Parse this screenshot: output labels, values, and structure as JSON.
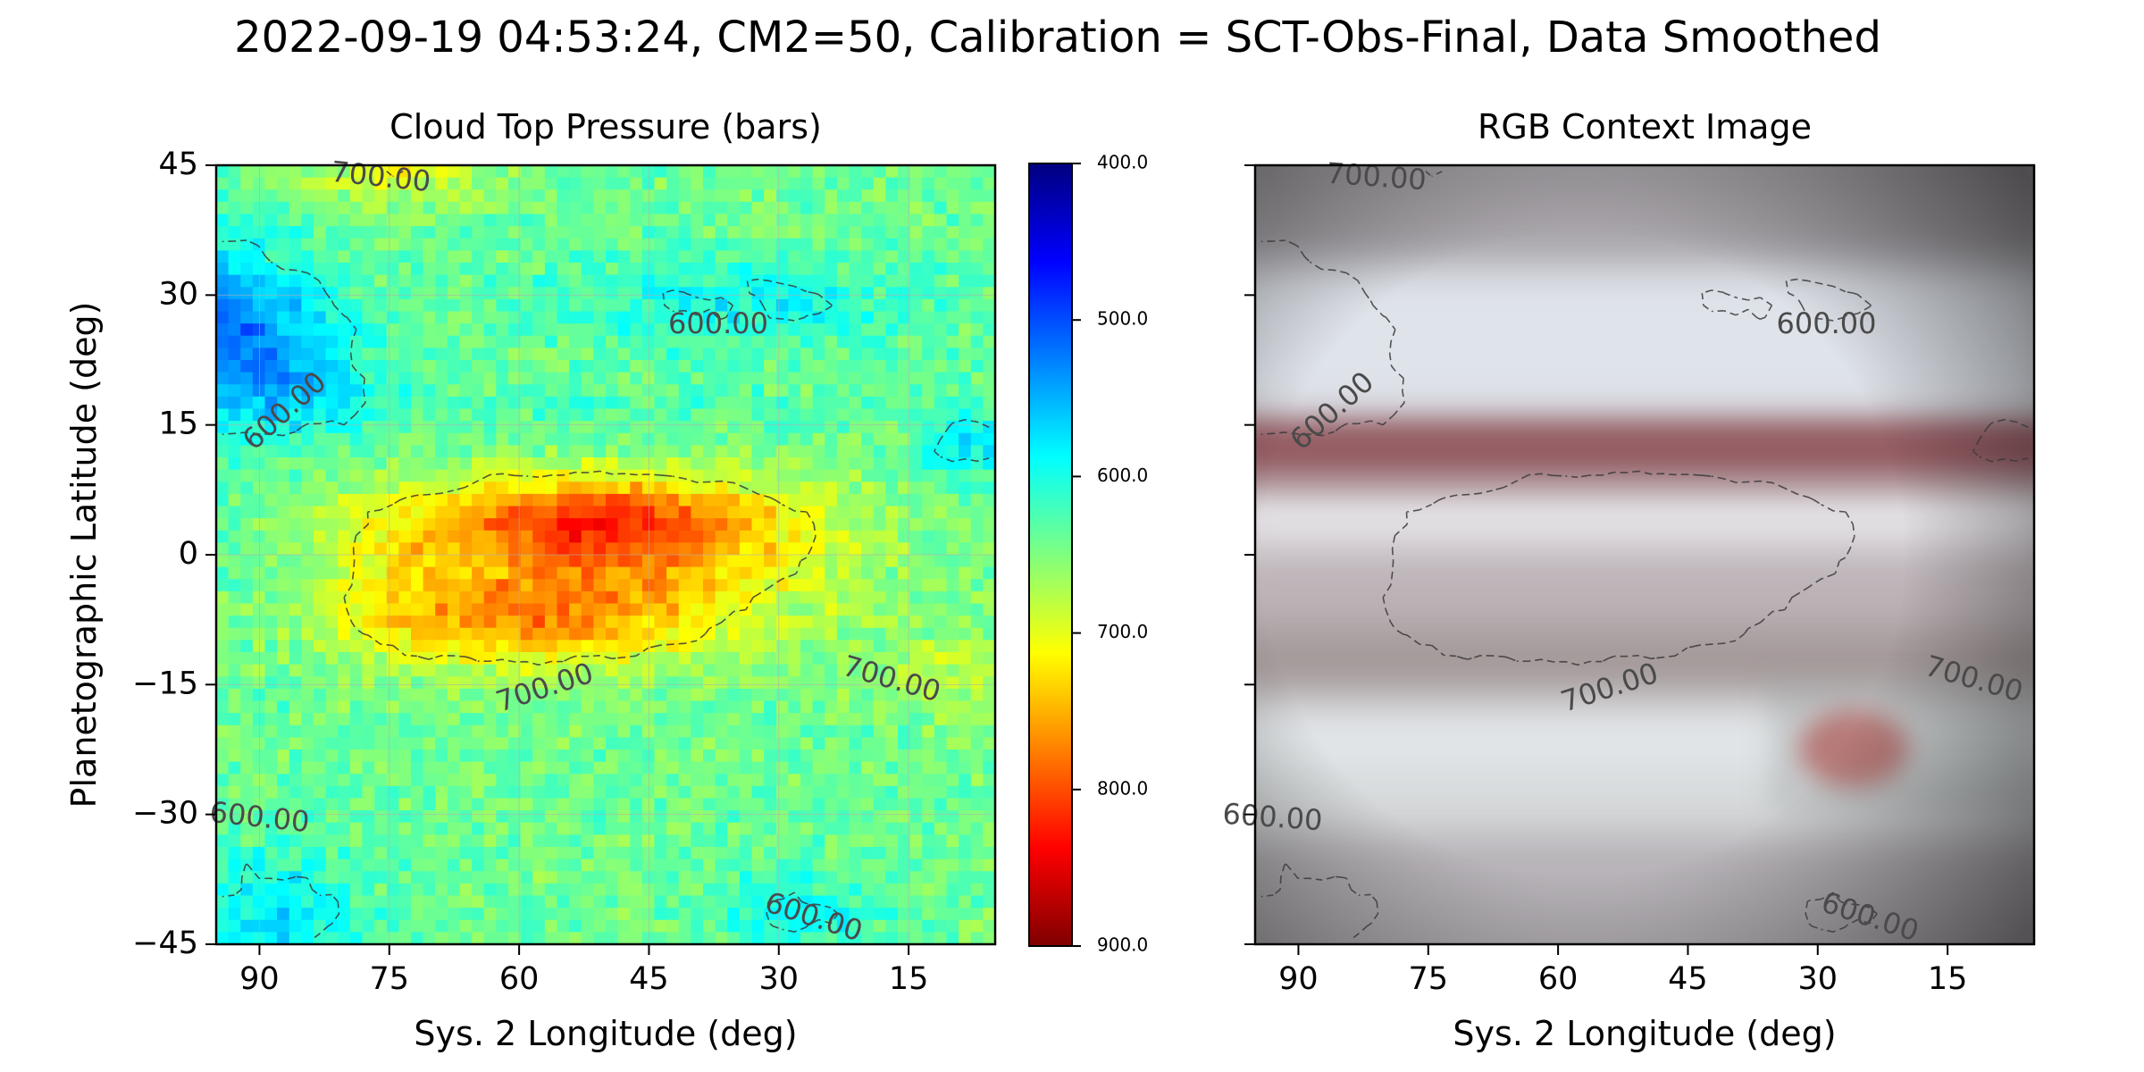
{
  "figure": {
    "suptitle": "2022-09-19 04:53:24, CM2=50, Calibration = SCT-Obs-Final, Data Smoothed"
  },
  "colors": {
    "colormap": [
      "#7f0000",
      "#ff0000",
      "#ff7f00",
      "#ffff00",
      "#7fff7f",
      "#00ffff",
      "#007fff",
      "#0000ff",
      "#00007f"
    ],
    "contour_line": "#3a3a3a",
    "contour_label": "#4a4a4a"
  },
  "chart_data": [
    {
      "type": "heatmap",
      "title": "Cloud Top Pressure (bars)",
      "xlabel": "Sys. 2 Longitude (deg)",
      "ylabel": "Planetographic Latitude (deg)",
      "xlim": [
        95,
        5
      ],
      "ylim": [
        -45,
        45
      ],
      "xticks": [
        90,
        75,
        60,
        45,
        30,
        15
      ],
      "xtick_labels": [
        "90",
        "75",
        "60",
        "45",
        "30",
        "15"
      ],
      "yticks": [
        45,
        30,
        15,
        0,
        -15,
        -30,
        -45
      ],
      "ytick_labels": [
        "45",
        "30",
        "15",
        "0",
        "−15",
        "−30",
        "−45"
      ],
      "grid": true,
      "colorbar": {
        "range": [
          400,
          900
        ],
        "inverted": true,
        "ticks": [
          400,
          500,
          600,
          700,
          800,
          900
        ],
        "tick_labels": [
          "400.0",
          "500.0",
          "600.0",
          "700.0",
          "800.0",
          "900.0"
        ]
      },
      "contour_levels": [
        600,
        700
      ],
      "contour_labels": [
        {
          "text": "700.00",
          "lon": 76,
          "lat": 43.5,
          "angle": 6
        },
        {
          "text": "600.00",
          "lon": 37,
          "lat": 26.5,
          "angle": 0
        },
        {
          "text": "600.00",
          "lon": 87,
          "lat": 16.5,
          "angle": -42
        },
        {
          "text": "700.00",
          "lon": 57,
          "lat": -15.5,
          "angle": -18
        },
        {
          "text": "700.00",
          "lon": 17,
          "lat": -14.5,
          "angle": 16
        },
        {
          "text": "600.00",
          "lon": 90,
          "lat": -30.5,
          "angle": 6
        },
        {
          "text": "600.00",
          "lon": 26,
          "lat": -42,
          "angle": 18
        }
      ],
      "features": [
        {
          "name": "equatorial high-pressure core",
          "lon": 52,
          "lat": 4,
          "value": 830
        },
        {
          "name": "southern high-pressure lobe",
          "lon": 57,
          "lat": -6,
          "value": 800
        },
        {
          "name": "northern low-pressure region",
          "lon": 92,
          "lat": 27,
          "value": 520
        }
      ]
    },
    {
      "type": "image",
      "title": "RGB Context Image",
      "xlabel": "Sys. 2 Longitude (deg)",
      "xlim": [
        95,
        5
      ],
      "ylim": [
        -45,
        45
      ],
      "xticks": [
        90,
        75,
        60,
        45,
        30,
        15
      ],
      "xtick_labels": [
        "90",
        "75",
        "60",
        "45",
        "30",
        "15"
      ],
      "yticks": [
        45,
        30,
        15,
        0,
        -15,
        -30,
        -45
      ],
      "contour_levels": [
        600,
        700
      ],
      "contour_labels": [
        {
          "text": "700.00",
          "lon": 81,
          "lat": 43.5,
          "angle": 4
        },
        {
          "text": "600.00",
          "lon": 29,
          "lat": 26.5,
          "angle": 0
        },
        {
          "text": "600.00",
          "lon": 86,
          "lat": 16.5,
          "angle": -42
        },
        {
          "text": "700.00",
          "lon": 54,
          "lat": -15.5,
          "angle": -18
        },
        {
          "text": "700.00",
          "lon": 12,
          "lat": -14.5,
          "angle": 16
        },
        {
          "text": "600.00",
          "lon": 93,
          "lat": -30.5,
          "angle": 4
        },
        {
          "text": "600.00",
          "lon": 24,
          "lat": -42,
          "angle": 18
        }
      ],
      "features": [
        {
          "name": "north equatorial dark belt",
          "lat_range": [
            9,
            15
          ],
          "color": "#8c4a52"
        },
        {
          "name": "great red spot",
          "lon": 25,
          "lat": -22,
          "color": "#c0504a"
        }
      ]
    }
  ]
}
